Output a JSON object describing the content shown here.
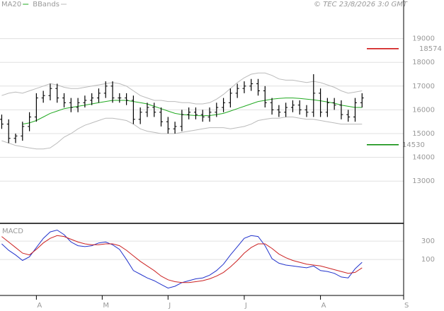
{
  "chart_data": [
    {
      "type": "ohlc",
      "source": "© TEC 23/8/2026 3:0 GMT",
      "x": [
        0,
        2,
        4,
        6,
        8,
        10,
        12,
        14,
        16,
        18,
        20,
        22,
        24,
        26,
        28,
        30,
        32,
        34,
        36,
        38,
        40,
        42,
        44,
        46,
        48,
        50,
        52,
        54,
        56,
        58,
        60,
        62,
        64,
        66,
        68,
        70,
        72,
        74,
        76,
        78,
        80,
        82,
        84,
        86,
        88,
        90,
        92,
        94,
        96,
        98,
        100,
        102,
        104
      ],
      "open": [
        15600,
        15400,
        14800,
        14900,
        15300,
        15700,
        16500,
        16600,
        16900,
        16500,
        16300,
        16100,
        16300,
        16400,
        16500,
        16700,
        17000,
        16500,
        16500,
        16400,
        15600,
        15900,
        16100,
        15900,
        15500,
        15200,
        15300,
        15800,
        15900,
        15800,
        15700,
        15900,
        16100,
        16300,
        16700,
        16900,
        17000,
        17100,
        16800,
        16300,
        16000,
        15900,
        16100,
        16200,
        16000,
        15900,
        16700,
        15900,
        16300,
        16200,
        15800,
        15700,
        16300
      ],
      "high": [
        15800,
        15600,
        15000,
        15500,
        15900,
        16700,
        16800,
        17100,
        17100,
        16700,
        16500,
        16500,
        16600,
        16700,
        16900,
        17200,
        17200,
        16700,
        16700,
        16600,
        16100,
        16300,
        16300,
        16100,
        15700,
        15500,
        16000,
        16100,
        16100,
        16000,
        16100,
        16300,
        16500,
        16900,
        17100,
        17200,
        17300,
        17300,
        17000,
        16500,
        16200,
        16300,
        16400,
        16400,
        16200,
        17500,
        16900,
        16500,
        16500,
        16400,
        16000,
        16500,
        16700
      ],
      "low": [
        15200,
        14600,
        14600,
        14700,
        15100,
        15500,
        16300,
        16400,
        16300,
        16100,
        15900,
        15900,
        16100,
        16200,
        16300,
        16500,
        16300,
        16300,
        16200,
        15400,
        15400,
        15700,
        15700,
        15300,
        15000,
        15000,
        15100,
        15600,
        15600,
        15500,
        15500,
        15700,
        15900,
        16100,
        16500,
        16700,
        16800,
        16600,
        16100,
        15800,
        15700,
        15700,
        15900,
        15800,
        15700,
        15700,
        15700,
        15700,
        16000,
        15600,
        15500,
        15500,
        16100
      ],
      "close": [
        15400,
        14800,
        14900,
        15300,
        15700,
        16500,
        16600,
        16900,
        16500,
        16300,
        16100,
        16300,
        16400,
        16500,
        16700,
        17000,
        16500,
        16500,
        16400,
        15600,
        15900,
        16100,
        15900,
        15500,
        15200,
        15300,
        15800,
        15900,
        15800,
        15700,
        15900,
        16100,
        16300,
        16700,
        16900,
        17000,
        17100,
        16800,
        16300,
        16000,
        15900,
        16100,
        16200,
        16000,
        15900,
        16700,
        15900,
        16300,
        16200,
        15800,
        15700,
        16300,
        16500
      ],
      "color": "#000000",
      "series": [
        {
          "name": "MA20",
          "color": "#22aa22",
          "values": [
            null,
            null,
            null,
            15400,
            15450,
            15550,
            15700,
            15850,
            15950,
            16050,
            16100,
            16150,
            16200,
            16250,
            16300,
            16350,
            16400,
            16400,
            16400,
            16350,
            16300,
            16250,
            16150,
            16050,
            15950,
            15850,
            15800,
            15780,
            15760,
            15750,
            15760,
            15800,
            15850,
            15950,
            16050,
            16150,
            16250,
            16350,
            16400,
            16450,
            16480,
            16500,
            16500,
            16480,
            16450,
            16420,
            16380,
            16330,
            16280,
            16200,
            16150,
            16100,
            16100
          ]
        },
        {
          "name": "BBands",
          "color": "#bbbbbb",
          "values": [
            16600,
            16700,
            16750,
            16700,
            16800,
            16900,
            17000,
            17100,
            17050,
            16950,
            16900,
            16900,
            16950,
            17000,
            17050,
            17100,
            17150,
            17100,
            17000,
            16800,
            16600,
            16500,
            16400,
            16400,
            16350,
            16350,
            16300,
            16300,
            16250,
            16250,
            16300,
            16450,
            16650,
            16900,
            17150,
            17350,
            17500,
            17550,
            17550,
            17450,
            17300,
            17250,
            17250,
            17200,
            17150,
            17200,
            17150,
            17050,
            16950,
            16800,
            16700,
            16750,
            16800
          ],
          "lower": [
            14700,
            14600,
            14500,
            14450,
            14400,
            14350,
            14350,
            14400,
            14600,
            14850,
            15000,
            15200,
            15350,
            15450,
            15550,
            15650,
            15650,
            15600,
            15550,
            15400,
            15200,
            15100,
            15050,
            15000,
            15000,
            15000,
            15050,
            15100,
            15150,
            15200,
            15250,
            15250,
            15250,
            15200,
            15250,
            15300,
            15400,
            15550,
            15600,
            15650,
            15650,
            15700,
            15700,
            15650,
            15600,
            15600,
            15550,
            15500,
            15450,
            15400,
            15400,
            15400,
            15400
          ]
        }
      ],
      "annotations": [
        {
          "value": 18574,
          "color": "#cc0000"
        },
        {
          "value": 14530,
          "color": "#008800"
        }
      ],
      "xlim": [
        -0.5,
        116
      ],
      "ylim": [
        11250,
        20625
      ],
      "yticks": [
        13000,
        14000,
        15000,
        16000,
        17000,
        18000,
        19000
      ],
      "grid": true
    },
    {
      "type": "line",
      "title": "MACD",
      "x": [
        0,
        2,
        4,
        6,
        8,
        10,
        12,
        14,
        16,
        18,
        20,
        22,
        24,
        26,
        28,
        30,
        32,
        34,
        36,
        38,
        40,
        42,
        44,
        46,
        48,
        50,
        52,
        54,
        56,
        58,
        60,
        62,
        64,
        66,
        68,
        70,
        72,
        74,
        76,
        78,
        80,
        82,
        84,
        86,
        88,
        90,
        92,
        94,
        96,
        98,
        100,
        102,
        104
      ],
      "series": [
        {
          "color": "#2233cc",
          "values": [
            270,
            200,
            150,
            90,
            130,
            230,
            330,
            400,
            420,
            370,
            290,
            250,
            240,
            250,
            280,
            290,
            260,
            210,
            100,
            -20,
            -60,
            -100,
            -130,
            -170,
            -210,
            -190,
            -150,
            -130,
            -110,
            -100,
            -70,
            -20,
            50,
            150,
            240,
            330,
            360,
            350,
            250,
            110,
            60,
            40,
            30,
            20,
            10,
            30,
            -20,
            -30,
            -50,
            -90,
            -100,
            0,
            70
          ]
        },
        {
          "color": "#cc2222",
          "values": [
            350,
            290,
            230,
            170,
            150,
            210,
            280,
            330,
            360,
            350,
            320,
            290,
            270,
            260,
            260,
            270,
            270,
            250,
            200,
            140,
            80,
            30,
            -20,
            -80,
            -120,
            -140,
            -150,
            -150,
            -140,
            -130,
            -110,
            -80,
            -40,
            20,
            90,
            170,
            230,
            270,
            270,
            220,
            160,
            120,
            90,
            70,
            50,
            40,
            30,
            10,
            -10,
            -30,
            -50,
            -40,
            10
          ]
        }
      ],
      "xlim": [
        -0.5,
        116
      ],
      "ylim": [
        -290,
        485
      ],
      "yticks": [
        100,
        300
      ],
      "xticks": [
        {
          "value": 10,
          "label": "A"
        },
        {
          "value": 29,
          "label": "M"
        },
        {
          "value": 48,
          "label": "J"
        },
        {
          "value": 70,
          "label": "J"
        },
        {
          "value": 92,
          "label": "A"
        },
        {
          "value": 116,
          "label": "S"
        }
      ],
      "grid": true
    }
  ]
}
